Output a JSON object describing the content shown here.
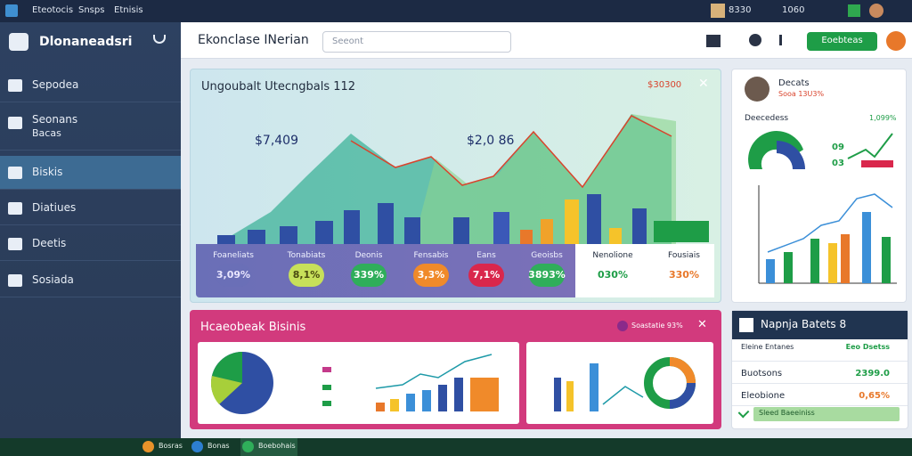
{
  "top_bar": {
    "items": [
      "Eteotocis",
      "Snsps",
      "Etnisis"
    ],
    "status": [
      "8330",
      "1060"
    ]
  },
  "sidebar": {
    "title": "Dlonaneadsri",
    "items": [
      {
        "label": "Sepodea"
      },
      {
        "label": "Seonans",
        "sub": "Bacas"
      },
      {
        "label": "Biskis"
      },
      {
        "label": "Diatiues"
      },
      {
        "label": "Deetis"
      },
      {
        "label": "Sosiada"
      }
    ]
  },
  "header": {
    "title": "Ekonclase INerian",
    "search": "Seeont",
    "button": "Eoebteas"
  },
  "main_card": {
    "title": "Ungoubalt Utecngbals 112",
    "badge": "$30300",
    "callouts": [
      "$7,409",
      "$2,0 86"
    ],
    "kpis": [
      {
        "label": "Foaneliats",
        "value": "3,09%"
      },
      {
        "label": "Tonabiats",
        "value": "8,1%"
      },
      {
        "label": "Deonis",
        "value": "339%"
      },
      {
        "label": "Fensabis",
        "value": "3,3%"
      },
      {
        "label": "Eans",
        "value": "7,1%"
      },
      {
        "label": "Geoisbs",
        "value": "3893%"
      },
      {
        "label": "Nenolione",
        "value": "030%"
      },
      {
        "label": "Fousiais",
        "value": "330%"
      }
    ]
  },
  "side_card": {
    "name": "Decats",
    "sub": "Sooa 13U3%",
    "section": "Deecedess",
    "badge": "1,099%",
    "stats": [
      "09",
      "03"
    ]
  },
  "pink_card": {
    "title": "Hcaeobeak Bisinis",
    "badge": "Soastatie 93%"
  },
  "list_card": {
    "title": "Napnja Batets 8",
    "rows": [
      {
        "label": "Eleine Entanes",
        "value": "Eeo Dsetss"
      },
      {
        "label": "Buotsons",
        "value": "2399.0"
      },
      {
        "label": "Eleobione",
        "value": "0,65%"
      }
    ],
    "footer": "Sleed Baeeiniss"
  },
  "taskbar": {
    "apps": [
      "Bosras",
      "Bonas",
      "Boebohais"
    ]
  }
}
